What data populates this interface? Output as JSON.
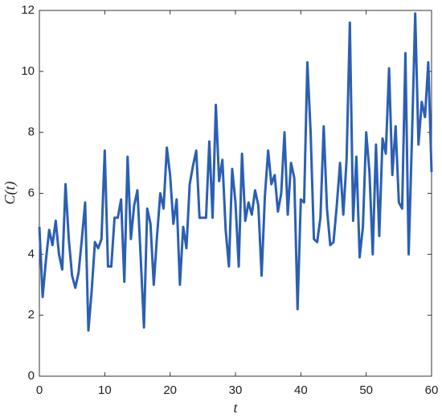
{
  "chart_data": {
    "type": "line",
    "x_label": "t",
    "y_label": "C(t)",
    "x": [
      0,
      0.5,
      1,
      1.5,
      2,
      2.5,
      3,
      3.5,
      4,
      4.5,
      5,
      5.5,
      6,
      6.5,
      7,
      7.5,
      8,
      8.5,
      9,
      9.5,
      10,
      10.5,
      11,
      11.5,
      12,
      12.5,
      13,
      13.5,
      14,
      14.5,
      15,
      15.5,
      16,
      16.5,
      17,
      17.5,
      18,
      18.5,
      19,
      19.5,
      20,
      20.5,
      21,
      21.5,
      22,
      22.5,
      23,
      23.5,
      24,
      24.5,
      25,
      25.5,
      26,
      26.5,
      27,
      27.5,
      28,
      28.5,
      29,
      29.5,
      30,
      30.5,
      31,
      31.5,
      32,
      32.5,
      33,
      33.5,
      34,
      34.5,
      35,
      35.5,
      36,
      36.5,
      37,
      37.5,
      38,
      38.5,
      39,
      39.5,
      40,
      40.5,
      41,
      41.5,
      42,
      42.5,
      43,
      43.5,
      44,
      44.5,
      45,
      45.5,
      46,
      46.5,
      47,
      47.5,
      48,
      48.5,
      49,
      49.5,
      50,
      50.5,
      51,
      51.5,
      52,
      52.5,
      53,
      53.5,
      54,
      54.5,
      55,
      55.5,
      56,
      56.5,
      57,
      57.5,
      58,
      58.5,
      59,
      59.5,
      60
    ],
    "series": [
      {
        "color": "#2b5fb4",
        "values": [
          4.9,
          2.6,
          3.8,
          4.8,
          4.3,
          5.1,
          4.0,
          3.5,
          6.3,
          4.5,
          3.3,
          2.9,
          3.4,
          4.5,
          5.7,
          1.5,
          2.8,
          4.4,
          4.2,
          4.5,
          7.4,
          3.6,
          3.6,
          5.2,
          5.2,
          5.8,
          3.1,
          7.2,
          4.5,
          5.6,
          6.1,
          3.9,
          1.6,
          5.5,
          5.0,
          3.0,
          4.6,
          6.0,
          5.5,
          7.5,
          6.6,
          5.0,
          5.8,
          3.0,
          4.9,
          4.2,
          6.3,
          6.9,
          7.4,
          5.2,
          5.2,
          5.2,
          7.7,
          5.2,
          8.9,
          6.4,
          7.1,
          4.8,
          3.6,
          6.8,
          5.7,
          3.6,
          7.3,
          5.1,
          5.7,
          5.3,
          6.1,
          5.6,
          3.3,
          5.9,
          7.4,
          6.3,
          6.6,
          5.4,
          6.0,
          8.0,
          5.3,
          7.0,
          6.5,
          2.2,
          5.8,
          5.7,
          10.3,
          8.0,
          4.5,
          4.4,
          5.2,
          8.2,
          5.5,
          4.3,
          4.4,
          5.6,
          7.0,
          5.3,
          7.1,
          11.6,
          5.1,
          7.2,
          3.9,
          4.9,
          8.0,
          6.7,
          4.0,
          7.6,
          4.6,
          7.8,
          7.3,
          10.1,
          6.6,
          8.2,
          5.7,
          5.5,
          10.6,
          4.0,
          7.8,
          11.9,
          7.6,
          9.0,
          8.5,
          10.3,
          6.7
        ]
      }
    ],
    "xlim": [
      0,
      60
    ],
    "xticks": [
      0,
      10,
      20,
      30,
      40,
      50,
      60
    ],
    "ylim": [
      0,
      12
    ],
    "yticks": [
      0,
      2,
      4,
      6,
      8,
      10,
      12
    ],
    "grid": false
  }
}
